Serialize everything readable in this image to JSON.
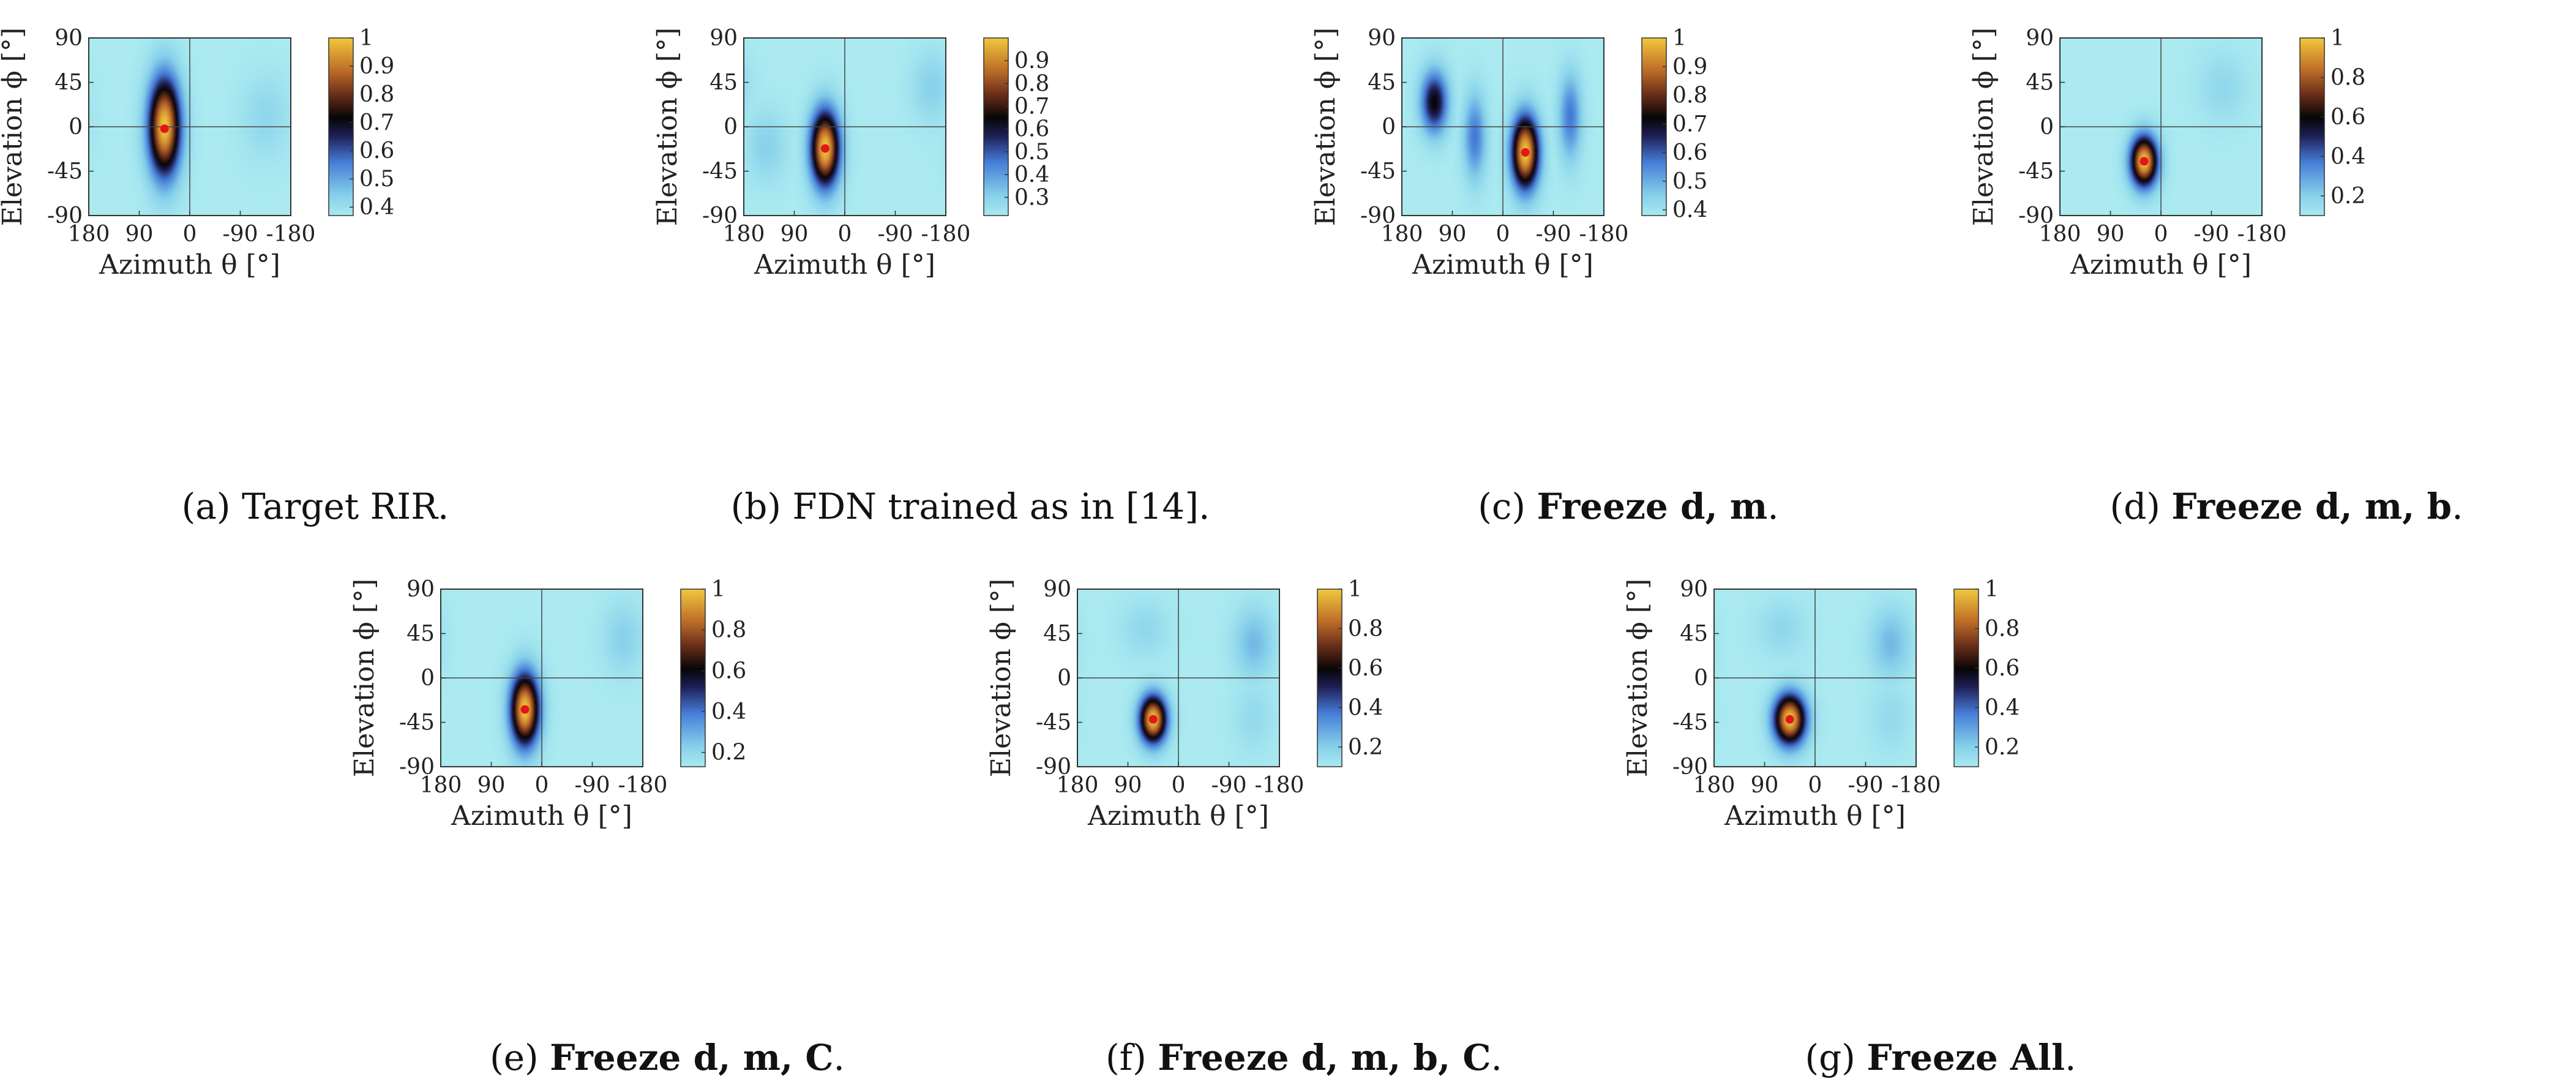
{
  "panels": [
    {
      "id": "a",
      "caption": {
        "prefix": "(a) Target RIR.",
        "bold": "",
        "suffix": ""
      }
    },
    {
      "id": "b",
      "caption": {
        "prefix": "(b) FDN trained as in [14].",
        "bold": "",
        "suffix": ""
      }
    },
    {
      "id": "c",
      "caption": {
        "prefix": "(c) ",
        "bold": "Freeze d, m",
        "suffix": "."
      }
    },
    {
      "id": "d",
      "caption": {
        "prefix": "(d) ",
        "bold": "Freeze d, m, b",
        "suffix": "."
      }
    },
    {
      "id": "e",
      "caption": {
        "prefix": "(e) ",
        "bold": "Freeze d, m, C",
        "suffix": "."
      }
    },
    {
      "id": "f",
      "caption": {
        "prefix": "(f) ",
        "bold": "Freeze d, m, b, C",
        "suffix": "."
      }
    },
    {
      "id": "g",
      "caption": {
        "prefix": "(g) ",
        "bold": "Freeze All",
        "suffix": "."
      }
    }
  ],
  "chart_data": [
    {
      "type": "heatmap",
      "title": "(a) Target RIR.",
      "xlabel": "Azimuth θ [°]",
      "ylabel": "Elevation ϕ [°]",
      "xlim": [
        180,
        -180
      ],
      "ylim": [
        -90,
        90
      ],
      "xticks": [
        180,
        90,
        0,
        -90,
        -180
      ],
      "yticks": [
        90,
        45,
        0,
        -45,
        -90
      ],
      "colorbar": {
        "range": [
          0.37,
          1.0
        ],
        "ticks": [
          0.4,
          0.5,
          0.6,
          0.7,
          0.8,
          0.9,
          1
        ]
      },
      "peak": {
        "azimuth": 45,
        "elevation": -2
      },
      "lobes": [
        {
          "azimuth": 45,
          "elevation": 0,
          "value": 1.0,
          "sigma_az": 20,
          "sigma_el": 35
        },
        {
          "azimuth": -135,
          "elevation": 10,
          "value": 0.42,
          "sigma_az": 30,
          "sigma_el": 30
        }
      ]
    },
    {
      "type": "heatmap",
      "title": "(b) FDN trained as in [14].",
      "xlabel": "Azimuth θ [°]",
      "ylabel": "Elevation ϕ [°]",
      "xlim": [
        180,
        -180
      ],
      "ylim": [
        -90,
        90
      ],
      "xticks": [
        180,
        90,
        0,
        -90,
        -180
      ],
      "yticks": [
        90,
        45,
        0,
        -45,
        -90
      ],
      "colorbar": {
        "range": [
          0.22,
          1.0
        ],
        "ticks": [
          0.3,
          0.4,
          0.5,
          0.6,
          0.7,
          0.8,
          0.9
        ]
      },
      "peak": {
        "azimuth": 35,
        "elevation": -22
      },
      "lobes": [
        {
          "azimuth": 35,
          "elevation": -22,
          "value": 1.0,
          "sigma_az": 18,
          "sigma_el": 27
        },
        {
          "azimuth": 140,
          "elevation": -20,
          "value": 0.3,
          "sigma_az": 25,
          "sigma_el": 25
        },
        {
          "azimuth": -155,
          "elevation": 40,
          "value": 0.3,
          "sigma_az": 25,
          "sigma_el": 25
        }
      ]
    },
    {
      "type": "heatmap",
      "title": "(c) Freeze d, m.",
      "xlabel": "Azimuth θ [°]",
      "ylabel": "Elevation ϕ [°]",
      "xlim": [
        180,
        -180
      ],
      "ylim": [
        -90,
        90
      ],
      "xticks": [
        180,
        90,
        0,
        -90,
        -180
      ],
      "yticks": [
        90,
        45,
        0,
        -45,
        -90
      ],
      "colorbar": {
        "range": [
          0.38,
          1.0
        ],
        "ticks": [
          0.4,
          0.5,
          0.6,
          0.7,
          0.8,
          0.9,
          1
        ]
      },
      "peak": {
        "azimuth": -40,
        "elevation": -26
      },
      "lobes": [
        {
          "azimuth": -40,
          "elevation": -26,
          "value": 1.0,
          "sigma_az": 17,
          "sigma_el": 26
        },
        {
          "azimuth": 122,
          "elevation": 25,
          "value": 0.72,
          "sigma_az": 17,
          "sigma_el": 22
        },
        {
          "azimuth": 50,
          "elevation": -10,
          "value": 0.57,
          "sigma_az": 14,
          "sigma_el": 30
        },
        {
          "azimuth": -120,
          "elevation": 10,
          "value": 0.57,
          "sigma_az": 14,
          "sigma_el": 30
        }
      ]
    },
    {
      "type": "heatmap",
      "title": "(d) Freeze d, m, b.",
      "xlabel": "Azimuth θ [°]",
      "ylabel": "Elevation ϕ [°]",
      "xlim": [
        180,
        -180
      ],
      "ylim": [
        -90,
        90
      ],
      "xticks": [
        180,
        90,
        0,
        -90,
        -180
      ],
      "yticks": [
        90,
        45,
        0,
        -45,
        -90
      ],
      "colorbar": {
        "range": [
          0.1,
          1.0
        ],
        "ticks": [
          0.2,
          0.4,
          0.6,
          0.8,
          1
        ]
      },
      "peak": {
        "azimuth": 30,
        "elevation": -35
      },
      "lobes": [
        {
          "azimuth": 30,
          "elevation": -35,
          "value": 1.0,
          "sigma_az": 17,
          "sigma_el": 18
        },
        {
          "azimuth": -110,
          "elevation": 40,
          "value": 0.17,
          "sigma_az": 30,
          "sigma_el": 25
        }
      ]
    },
    {
      "type": "heatmap",
      "title": "(e) Freeze d, m, C.",
      "xlabel": "Azimuth θ [°]",
      "ylabel": "Elevation ϕ [°]",
      "xlim": [
        180,
        -180
      ],
      "ylim": [
        -90,
        90
      ],
      "xticks": [
        180,
        90,
        0,
        -90,
        -180
      ],
      "yticks": [
        90,
        45,
        0,
        -45,
        -90
      ],
      "colorbar": {
        "range": [
          0.13,
          1.0
        ],
        "ticks": [
          0.2,
          0.4,
          0.6,
          0.8,
          1
        ]
      },
      "peak": {
        "azimuth": 30,
        "elevation": -32
      },
      "lobes": [
        {
          "azimuth": 30,
          "elevation": -32,
          "value": 1.0,
          "sigma_az": 18,
          "sigma_el": 26
        },
        {
          "azimuth": -145,
          "elevation": 40,
          "value": 0.22,
          "sigma_az": 25,
          "sigma_el": 25
        }
      ]
    },
    {
      "type": "heatmap",
      "title": "(f) Freeze d, m, b, C.",
      "xlabel": "Azimuth θ [°]",
      "ylabel": "Elevation ϕ [°]",
      "xlim": [
        180,
        -180
      ],
      "ylim": [
        -90,
        90
      ],
      "xticks": [
        180,
        90,
        0,
        -90,
        -180
      ],
      "yticks": [
        90,
        45,
        0,
        -45,
        -90
      ],
      "colorbar": {
        "range": [
          0.1,
          1.0
        ],
        "ticks": [
          0.2,
          0.4,
          0.6,
          0.8,
          1
        ]
      },
      "peak": {
        "azimuth": 45,
        "elevation": -42
      },
      "lobes": [
        {
          "azimuth": 45,
          "elevation": -42,
          "value": 1.0,
          "sigma_az": 17,
          "sigma_el": 17
        },
        {
          "azimuth": -135,
          "elevation": 35,
          "value": 0.25,
          "sigma_az": 25,
          "sigma_el": 25
        },
        {
          "azimuth": 60,
          "elevation": 50,
          "value": 0.17,
          "sigma_az": 30,
          "sigma_el": 20
        },
        {
          "azimuth": -135,
          "elevation": -40,
          "value": 0.16,
          "sigma_az": 25,
          "sigma_el": 25
        }
      ]
    },
    {
      "type": "heatmap",
      "title": "(g) Freeze All.",
      "xlabel": "Azimuth θ [°]",
      "ylabel": "Elevation ϕ [°]",
      "xlim": [
        180,
        -180
      ],
      "ylim": [
        -90,
        90
      ],
      "xticks": [
        180,
        90,
        0,
        -90,
        -180
      ],
      "yticks": [
        90,
        45,
        0,
        -45,
        -90
      ],
      "colorbar": {
        "range": [
          0.1,
          1.0
        ],
        "ticks": [
          0.2,
          0.4,
          0.6,
          0.8,
          1
        ]
      },
      "peak": {
        "azimuth": 45,
        "elevation": -42
      },
      "lobes": [
        {
          "azimuth": 45,
          "elevation": -42,
          "value": 1.0,
          "sigma_az": 20,
          "sigma_el": 18
        },
        {
          "azimuth": -135,
          "elevation": 35,
          "value": 0.25,
          "sigma_az": 25,
          "sigma_el": 25
        },
        {
          "azimuth": 60,
          "elevation": 50,
          "value": 0.17,
          "sigma_az": 30,
          "sigma_el": 20
        },
        {
          "azimuth": -135,
          "elevation": -40,
          "value": 0.16,
          "sigma_az": 25,
          "sigma_el": 25
        }
      ]
    }
  ]
}
